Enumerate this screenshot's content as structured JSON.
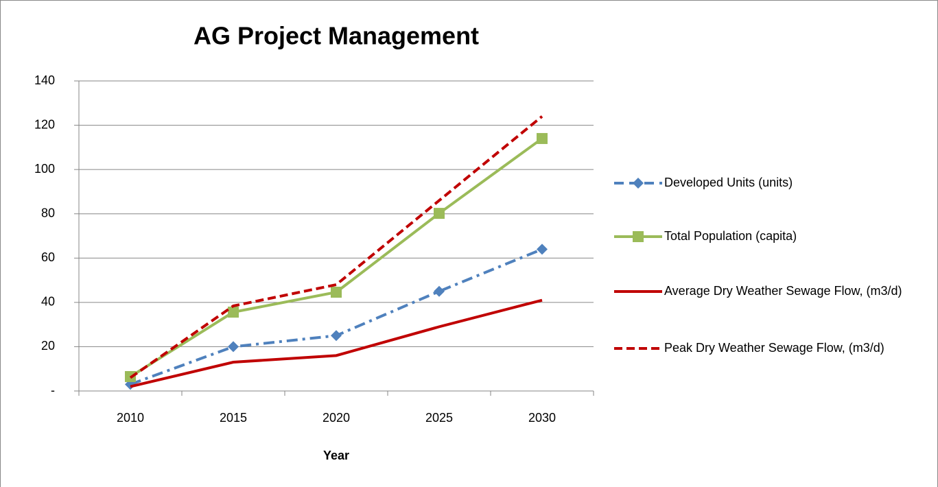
{
  "chart_data": {
    "type": "line",
    "title": "AG Project Management",
    "x_label": "Year",
    "categories": [
      "2010",
      "2015",
      "2020",
      "2025",
      "2030"
    ],
    "series": [
      {
        "name": "Developed Units (units)",
        "color": "#4f81bd",
        "dash": "dash-dot",
        "marker": "diamond",
        "values": [
          3,
          20,
          25,
          45,
          64
        ]
      },
      {
        "name": "Total Population (capita)",
        "color": "#9bbb59",
        "dash": "solid",
        "marker": "square",
        "values": [
          6.5,
          35.6,
          44.6,
          80.2,
          114
        ]
      },
      {
        "name": "Average Dry Weather Sewage Flow, (m3/d)",
        "color": "#c00000",
        "dash": "solid",
        "marker": "none",
        "values": [
          2,
          13,
          16,
          29,
          41
        ]
      },
      {
        "name": "Peak Dry Weather Sewage Flow, (m3/d)",
        "color": "#c00000",
        "dash": "dashed",
        "marker": "none",
        "values": [
          6,
          38.4,
          48,
          86,
          124
        ]
      }
    ],
    "ylim": [
      0,
      140
    ],
    "yticks": [
      {
        "value": 0,
        "label": "-"
      },
      20,
      40,
      60,
      80,
      100,
      120,
      140
    ],
    "grid": true,
    "legend": "right"
  }
}
